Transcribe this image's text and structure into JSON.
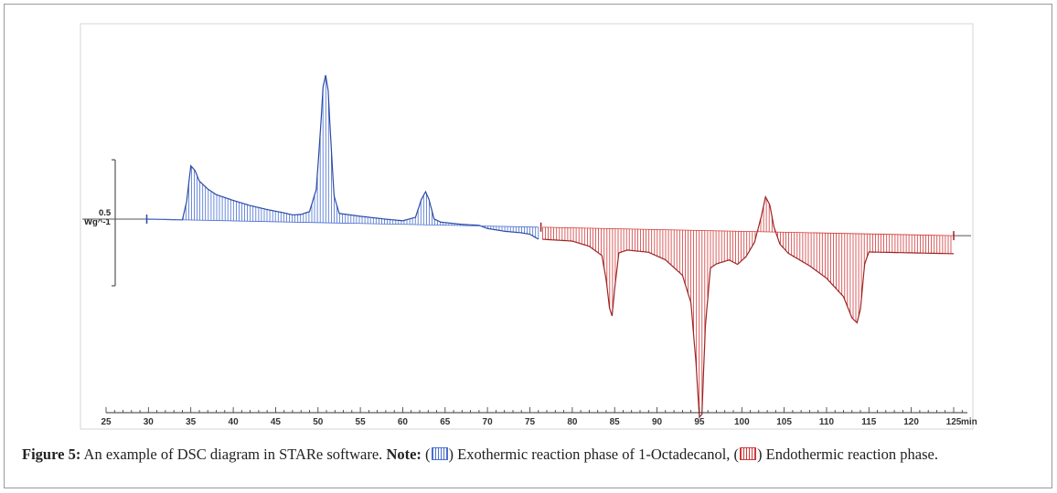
{
  "chart_data": {
    "type": "area",
    "title": "",
    "xlabel": "",
    "x_unit": "min",
    "y_scale_label": "0.5",
    "y_unit": "Wg^-1",
    "xlim": [
      25,
      126
    ],
    "x_ticks": [
      25,
      30,
      35,
      40,
      45,
      50,
      55,
      60,
      65,
      70,
      75,
      80,
      85,
      90,
      95,
      100,
      105,
      110,
      115,
      120,
      125
    ],
    "grid": false,
    "series": [
      {
        "key": "exothermic",
        "color": "#4a6fd0",
        "x": [
          29.8,
          34.0,
          34.5,
          35.0,
          35.5,
          36.0,
          37.0,
          38.0,
          40.0,
          42.0,
          44.0,
          46.0,
          47.0,
          48.0,
          49.0,
          49.8,
          50.3,
          50.6,
          50.9,
          51.2,
          51.5,
          51.9,
          52.5,
          55.0,
          58.0,
          60.0,
          61.5,
          62.2,
          62.7,
          63.1,
          63.7,
          64.5,
          67.0,
          69.0,
          70.0,
          72.0,
          74.0,
          75.0,
          76.0
        ],
        "y": [
          0.0,
          0.0,
          0.3,
          0.9,
          0.82,
          0.65,
          0.52,
          0.43,
          0.34,
          0.26,
          0.2,
          0.15,
          0.12,
          0.13,
          0.18,
          0.55,
          1.55,
          2.25,
          2.45,
          2.2,
          1.4,
          0.45,
          0.16,
          0.12,
          0.08,
          0.06,
          0.12,
          0.42,
          0.55,
          0.42,
          0.1,
          0.05,
          0.02,
          0.01,
          -0.04,
          -0.08,
          -0.1,
          -0.12,
          -0.2
        ]
      },
      {
        "key": "endothermic",
        "color": "#d03a3a",
        "x": [
          76.5,
          80.0,
          82.0,
          83.5,
          84.0,
          84.4,
          84.7,
          85.0,
          85.5,
          86.5,
          89.0,
          91.0,
          93.0,
          94.0,
          94.6,
          95.0,
          95.3,
          95.7,
          96.3,
          97.0,
          98.5,
          99.5,
          100.5,
          101.5,
          102.3,
          102.8,
          103.3,
          103.8,
          104.5,
          105.5,
          108.0,
          110.0,
          112.0,
          113.0,
          113.6,
          114.0,
          114.5,
          115.0,
          118.0,
          121.0,
          125.0
        ],
        "y": [
          -0.2,
          -0.22,
          -0.3,
          -0.45,
          -0.85,
          -1.32,
          -1.45,
          -1.0,
          -0.4,
          -0.35,
          -0.38,
          -0.5,
          -0.75,
          -1.2,
          -2.2,
          -3.1,
          -3.05,
          -1.6,
          -0.62,
          -0.55,
          -0.48,
          -0.55,
          -0.42,
          -0.18,
          0.25,
          0.58,
          0.45,
          0.08,
          -0.2,
          -0.35,
          -0.55,
          -0.75,
          -1.05,
          -1.4,
          -1.48,
          -1.25,
          -0.5,
          -0.3,
          -0.3,
          -0.3,
          -0.3
        ]
      }
    ]
  },
  "caption": {
    "figure_label": "Figure 5:",
    "text": " An example of DSC diagram in STARe software. ",
    "note_label": "Note:",
    "open_paren_1": " (",
    "exo_text": ") Exothermic reaction phase of 1-Octadecanol, (",
    "endo_text": ") Endothermic reaction phase."
  }
}
